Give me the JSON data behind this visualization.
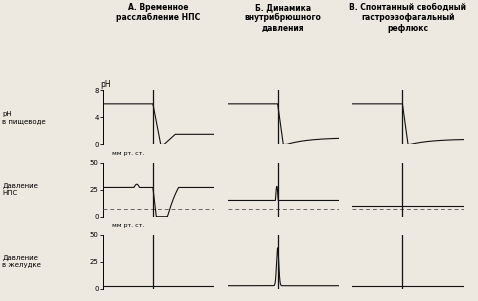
{
  "col_titles": [
    "А. Временное\nрасслабление НПС",
    "Б. Динамика\nвнутрибрюшного\nдавления",
    "В. Спонтанный свободный\nгастроэзофагальный\nрефлюкс"
  ],
  "background_color": "#ede8e0",
  "line_color": "#111111",
  "dashed_color": "#666666",
  "ph_yticks": [
    0,
    4,
    8
  ],
  "nps_yticks": [
    0,
    25,
    50
  ],
  "stomach_yticks": [
    0,
    25,
    50
  ]
}
